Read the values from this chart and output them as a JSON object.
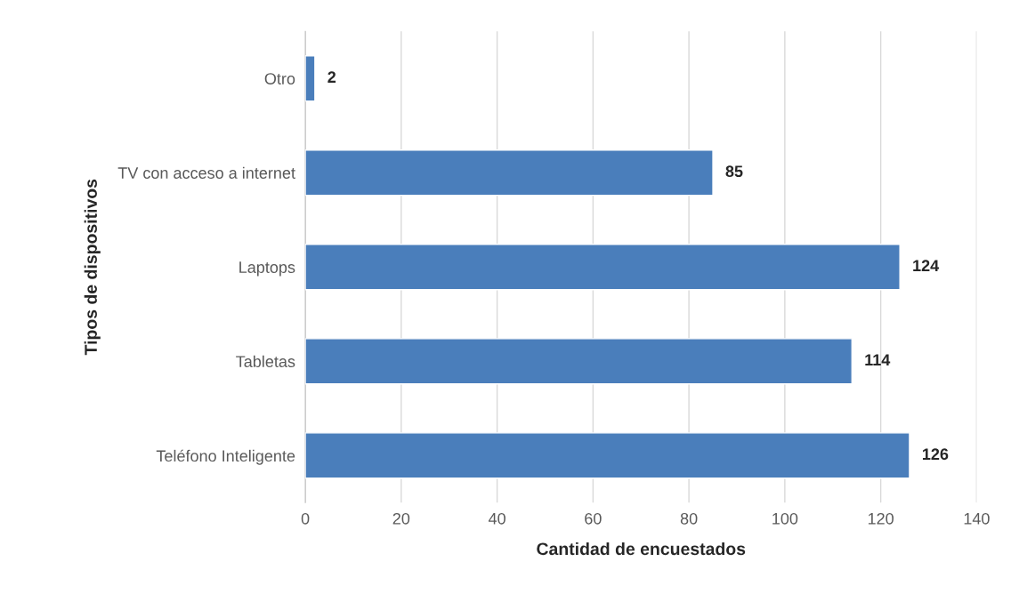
{
  "chart_data": {
    "type": "bar",
    "orientation": "horizontal",
    "categories": [
      "Otro",
      "TV con acceso a internet",
      "Laptops",
      "Tabletas",
      "Teléfono Inteligente"
    ],
    "values": [
      2,
      85,
      124,
      114,
      126
    ],
    "color": "#4a7ebb",
    "xlim": [
      0,
      140
    ],
    "xticks": [
      0,
      20,
      40,
      60,
      80,
      100,
      120,
      140
    ],
    "xlabel": "Cantidad de encuestados",
    "ylabel": "Tipos de dispositivos",
    "grid": "x",
    "data_labels": true
  }
}
